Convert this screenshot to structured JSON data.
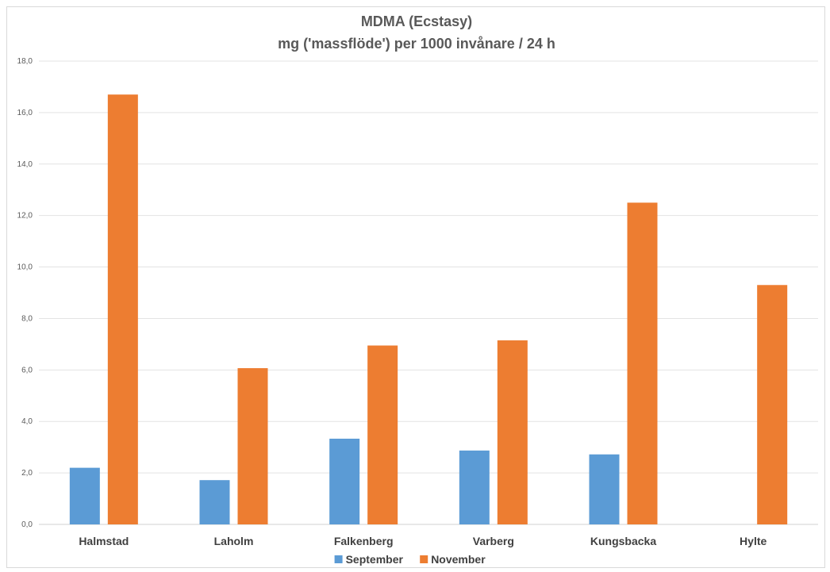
{
  "chart_data": {
    "type": "bar",
    "title": "MDMA (Ecstasy)",
    "subtitle": "mg ('massflöde') per 1000 invånare / 24 h",
    "categories": [
      "Halmstad",
      "Laholm",
      "Falkenberg",
      "Varberg",
      "Kungsbacka",
      "Hylte"
    ],
    "series": [
      {
        "name": "September",
        "color": "#5b9bd5",
        "values": [
          2.2,
          1.72,
          3.33,
          2.87,
          2.72,
          null
        ]
      },
      {
        "name": "November",
        "color": "#ed7d31",
        "values": [
          16.7,
          6.07,
          6.95,
          7.15,
          12.5,
          9.3
        ]
      }
    ],
    "ylim": [
      0,
      18
    ],
    "ytick_labels": [
      "0,0",
      "2,0",
      "4,0",
      "6,0",
      "8,0",
      "10,0",
      "12,0",
      "14,0",
      "16,0",
      "18,0"
    ],
    "grid": true,
    "legend_position": "bottom"
  }
}
